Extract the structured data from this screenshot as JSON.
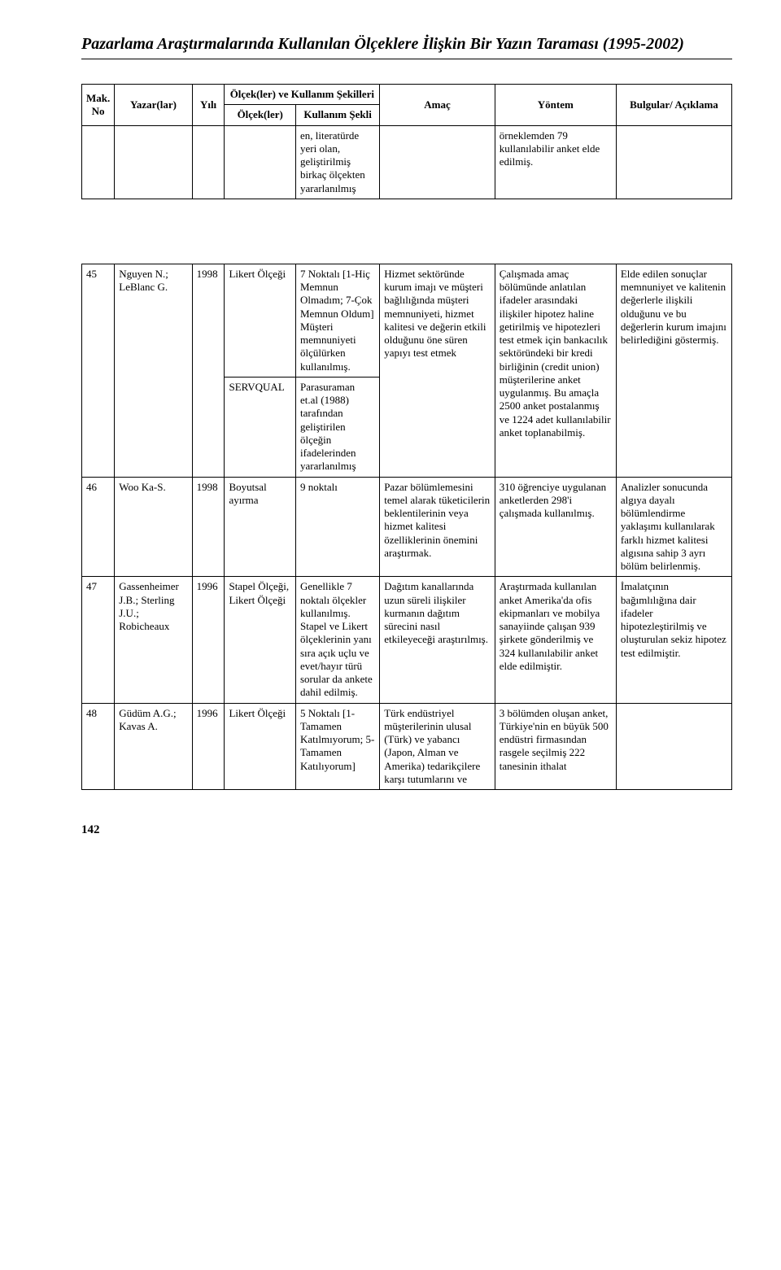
{
  "header": {
    "title": "Pazarlama Araştırmalarında Kullanılan Ölçeklere İlişkin Bir Yazın Taraması (1995-2002)"
  },
  "table": {
    "columns": {
      "no": "Mak. No",
      "author": "Yazar(lar)",
      "year": "Yılı",
      "scale_group": "Ölçek(ler) ve Kullanım Şekilleri",
      "scale": "Ölçek(ler)",
      "usage": "Kullanım Şekli",
      "purpose": "Amaç",
      "method": "Yöntem",
      "findings": "Bulgular/ Açıklama"
    },
    "rows": [
      {
        "no": "",
        "author": "",
        "year": "",
        "scales": [
          {
            "scale": "",
            "usage": "en, literatürde yeri olan, geliştirilmiş birkaç ölçekten yararlanılmış"
          }
        ],
        "purpose": "",
        "method": "örneklemden 79 kullanılabilir anket elde edilmiş.",
        "findings": ""
      },
      {
        "no": "45",
        "author": "Nguyen N.; LeBlanc G.",
        "year": "1998",
        "scales": [
          {
            "scale": "Likert Ölçeği",
            "usage": "7 Noktalı [1-Hiç Memnun Olmadım; 7-Çok Memnun Oldum] Müşteri memnuniyeti ölçülürken kullanılmış."
          },
          {
            "scale": "SERVQUAL",
            "usage": "Parasuraman et.al (1988) tarafından geliştirilen ölçeğin ifadelerinden yararlanılmış"
          }
        ],
        "purpose": "Hizmet sektöründe kurum imajı ve müşteri bağlılığında müşteri memnuniyeti, hizmet kalitesi ve değerin etkili olduğunu öne süren yapıyı test etmek",
        "method": "Çalışmada amaç bölümünde anlatılan ifadeler arasındaki ilişkiler hipotez haline getirilmiş ve hipotezleri test etmek için bankacılık sektöründeki bir kredi birliğinin (credit union) müşterilerine anket uygulanmış. Bu amaçla 2500 anket postalanmış ve 1224 adet kullanılabilir anket toplanabilmiş.",
        "findings": "Elde edilen sonuçlar memnuniyet ve kalitenin değerlerle ilişkili olduğunu ve bu değerlerin kurum imajını belirlediğini göstermiş."
      },
      {
        "no": "46",
        "author": "Woo Ka-S.",
        "year": "1998",
        "scales": [
          {
            "scale": "Boyutsal ayırma",
            "usage": "9 noktalı"
          }
        ],
        "purpose": "Pazar bölümlemesini temel alarak tüketicilerin beklentilerinin veya hizmet kalitesi özelliklerinin önemini araştırmak.",
        "method": "310 öğrenciye uygulanan anketlerden 298'i çalışmada kullanılmış.",
        "findings": "Analizler sonucunda algıya dayalı bölümlendirme yaklaşımı kullanılarak farklı hizmet kalitesi algısına sahip 3 ayrı bölüm belirlenmiş."
      },
      {
        "no": "47",
        "author": "Gassenheimer J.B.; Sterling J.U.; Robicheaux",
        "year": "1996",
        "scales": [
          {
            "scale": "Stapel Ölçeği, Likert Ölçeği",
            "usage": "Genellikle 7 noktalı ölçekler kullanılmış. Stapel ve Likert ölçeklerinin yanı sıra açık uçlu ve evet/hayır türü sorular da ankete dahil edilmiş."
          }
        ],
        "purpose": "Dağıtım kanallarında uzun süreli ilişkiler kurmanın dağıtım sürecini nasıl etkileyeceği araştırılmış.",
        "method": "Araştırmada kullanılan anket Amerika'da ofis ekipmanları ve mobilya sanayiinde çalışan 939 şirkete gönderilmiş ve 324 kullanılabilir anket elde edilmiştir.",
        "findings": "İmalatçının bağımlılığına dair ifadeler hipotezleştirilmiş ve oluşturulan sekiz hipotez test edilmiştir."
      },
      {
        "no": "48",
        "author": "Güdüm A.G.; Kavas A.",
        "year": "1996",
        "scales": [
          {
            "scale": "Likert Ölçeği",
            "usage": "5 Noktalı [1-Tamamen Katılmıyorum; 5-Tamamen Katılıyorum]"
          }
        ],
        "purpose": "Türk endüstriyel müşterilerinin ulusal (Türk) ve yabancı (Japon, Alman ve Amerika) tedarikçilere karşı tutumlarını ve",
        "method": "3 bölümden oluşan anket, Türkiye'nin en büyük 500 endüstri firmasından rasgele seçilmiş 222 tanesinin ithalat",
        "findings": ""
      }
    ]
  },
  "footer": {
    "page_number": "142"
  }
}
